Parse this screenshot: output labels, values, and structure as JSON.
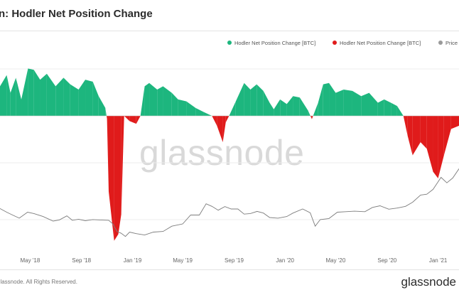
{
  "header": {
    "title": "n: Hodler Net Position Change"
  },
  "legend": {
    "items": [
      {
        "label": "Hodler Net Position Change [BTC]",
        "color": "#1db67e"
      },
      {
        "label": "Hodler Net Position Change [BTC]",
        "color": "#e01b1b"
      },
      {
        "label": "Price",
        "color": "#9a9a9a"
      }
    ]
  },
  "footer": {
    "copyright": "glassnode. All Rights Reserved.",
    "brand": "glassnode"
  },
  "watermark": "glassnode",
  "chart_data": {
    "type": "area",
    "title": "n: Hodler Net Position Change",
    "x_ticks": [
      "May '18",
      "Sep '18",
      "Jan '19",
      "May '19",
      "Sep '19",
      "Jan '20",
      "May '20",
      "Sep '20",
      "Jan '21"
    ],
    "x_range": [
      "2018-02-18",
      "2021-02-20"
    ],
    "grid": "horizontal",
    "legend_position": "top-right",
    "series": [
      {
        "name": "Hodler Net Position Change [BTC]",
        "type": "area",
        "color_positive": "#1db67e",
        "color_negative": "#e01b1b",
        "points": [
          [
            "2018-02-18",
            45000
          ],
          [
            "2018-03-06",
            62000
          ],
          [
            "2018-03-15",
            35000
          ],
          [
            "2018-03-28",
            58000
          ],
          [
            "2018-04-10",
            25000
          ],
          [
            "2018-04-26",
            72000
          ],
          [
            "2018-05-10",
            70000
          ],
          [
            "2018-05-25",
            55000
          ],
          [
            "2018-06-10",
            64000
          ],
          [
            "2018-07-01",
            45000
          ],
          [
            "2018-07-20",
            58000
          ],
          [
            "2018-08-05",
            48000
          ],
          [
            "2018-08-25",
            40000
          ],
          [
            "2018-09-10",
            55000
          ],
          [
            "2018-09-28",
            52000
          ],
          [
            "2018-10-12",
            30000
          ],
          [
            "2018-10-28",
            12000
          ],
          [
            "2018-11-01",
            -5000
          ],
          [
            "2018-11-05",
            -115000
          ],
          [
            "2018-11-18",
            -190000
          ],
          [
            "2018-11-28",
            -180000
          ],
          [
            "2018-12-05",
            -150000
          ],
          [
            "2018-12-12",
            0
          ],
          [
            "2018-12-25",
            -8000
          ],
          [
            "2019-01-10",
            -12000
          ],
          [
            "2019-01-20",
            0
          ],
          [
            "2019-01-30",
            45000
          ],
          [
            "2019-02-10",
            50000
          ],
          [
            "2019-03-01",
            40000
          ],
          [
            "2019-03-15",
            45000
          ],
          [
            "2019-04-05",
            35000
          ],
          [
            "2019-04-20",
            25000
          ],
          [
            "2019-05-10",
            22000
          ],
          [
            "2019-06-01",
            12000
          ],
          [
            "2019-06-20",
            6000
          ],
          [
            "2019-07-10",
            0
          ],
          [
            "2019-07-22",
            -15000
          ],
          [
            "2019-08-05",
            -40000
          ],
          [
            "2019-08-12",
            -10000
          ],
          [
            "2019-08-20",
            0
          ],
          [
            "2019-09-05",
            22000
          ],
          [
            "2019-09-25",
            50000
          ],
          [
            "2019-10-10",
            40000
          ],
          [
            "2019-10-25",
            48000
          ],
          [
            "2019-11-10",
            38000
          ],
          [
            "2019-11-25",
            20000
          ],
          [
            "2019-12-05",
            10000
          ],
          [
            "2019-12-20",
            25000
          ],
          [
            "2020-01-05",
            18000
          ],
          [
            "2020-01-20",
            30000
          ],
          [
            "2020-02-05",
            28000
          ],
          [
            "2020-02-25",
            8000
          ],
          [
            "2020-03-05",
            -5000
          ],
          [
            "2020-03-20",
            20000
          ],
          [
            "2020-04-01",
            48000
          ],
          [
            "2020-04-15",
            50000
          ],
          [
            "2020-05-01",
            35000
          ],
          [
            "2020-05-20",
            40000
          ],
          [
            "2020-06-10",
            38000
          ],
          [
            "2020-07-01",
            30000
          ],
          [
            "2020-07-20",
            35000
          ],
          [
            "2020-08-10",
            20000
          ],
          [
            "2020-08-25",
            25000
          ],
          [
            "2020-09-10",
            20000
          ],
          [
            "2020-09-25",
            15000
          ],
          [
            "2020-10-10",
            0
          ],
          [
            "2020-10-20",
            -30000
          ],
          [
            "2020-11-01",
            -60000
          ],
          [
            "2020-11-20",
            -40000
          ],
          [
            "2020-12-05",
            -50000
          ],
          [
            "2020-12-20",
            -85000
          ],
          [
            "2021-01-01",
            -95000
          ],
          [
            "2021-01-15",
            -60000
          ],
          [
            "2021-02-01",
            -20000
          ],
          [
            "2021-02-20",
            -15000
          ]
        ]
      },
      {
        "name": "Price",
        "type": "line",
        "color": "#9a9a9a",
        "points": [
          [
            "2018-02-18",
            10500
          ],
          [
            "2018-03-06",
            9000
          ],
          [
            "2018-03-20",
            8000
          ],
          [
            "2018-04-05",
            7000
          ],
          [
            "2018-04-25",
            9000
          ],
          [
            "2018-05-10",
            8500
          ],
          [
            "2018-06-01",
            7500
          ],
          [
            "2018-06-25",
            6200
          ],
          [
            "2018-07-10",
            6500
          ],
          [
            "2018-07-28",
            7700
          ],
          [
            "2018-08-10",
            6400
          ],
          [
            "2018-08-25",
            6700
          ],
          [
            "2018-09-10",
            6300
          ],
          [
            "2018-09-28",
            6600
          ],
          [
            "2018-10-15",
            6500
          ],
          [
            "2018-11-05",
            6400
          ],
          [
            "2018-11-15",
            5500
          ],
          [
            "2018-11-25",
            4000
          ],
          [
            "2018-12-05",
            3700
          ],
          [
            "2018-12-15",
            3250
          ],
          [
            "2018-12-25",
            3900
          ],
          [
            "2019-01-10",
            3650
          ],
          [
            "2019-01-30",
            3450
          ],
          [
            "2019-02-20",
            3900
          ],
          [
            "2019-03-15",
            4000
          ],
          [
            "2019-04-05",
            5000
          ],
          [
            "2019-05-01",
            5500
          ],
          [
            "2019-05-20",
            8000
          ],
          [
            "2019-06-10",
            8000
          ],
          [
            "2019-06-26",
            12800
          ],
          [
            "2019-07-10",
            11500
          ],
          [
            "2019-07-25",
            9800
          ],
          [
            "2019-08-10",
            11400
          ],
          [
            "2019-08-25",
            10300
          ],
          [
            "2019-09-10",
            10300
          ],
          [
            "2019-09-25",
            8300
          ],
          [
            "2019-10-10",
            8500
          ],
          [
            "2019-10-26",
            9300
          ],
          [
            "2019-11-10",
            8700
          ],
          [
            "2019-11-25",
            7200
          ],
          [
            "2019-12-15",
            7000
          ],
          [
            "2020-01-05",
            7500
          ],
          [
            "2020-01-20",
            8700
          ],
          [
            "2020-02-12",
            10300
          ],
          [
            "2020-03-01",
            8800
          ],
          [
            "2020-03-13",
            5000
          ],
          [
            "2020-03-25",
            6600
          ],
          [
            "2020-04-15",
            6900
          ],
          [
            "2020-05-05",
            9000
          ],
          [
            "2020-05-25",
            9200
          ],
          [
            "2020-06-15",
            9400
          ],
          [
            "2020-07-10",
            9200
          ],
          [
            "2020-07-28",
            11000
          ],
          [
            "2020-08-15",
            11800
          ],
          [
            "2020-09-05",
            10200
          ],
          [
            "2020-09-25",
            10700
          ],
          [
            "2020-10-15",
            11500
          ],
          [
            "2020-11-01",
            13700
          ],
          [
            "2020-11-20",
            18500
          ],
          [
            "2020-12-05",
            19200
          ],
          [
            "2020-12-20",
            23500
          ],
          [
            "2021-01-08",
            39000
          ],
          [
            "2021-01-22",
            31000
          ],
          [
            "2021-02-05",
            38000
          ],
          [
            "2021-02-20",
            56000
          ]
        ]
      }
    ]
  }
}
